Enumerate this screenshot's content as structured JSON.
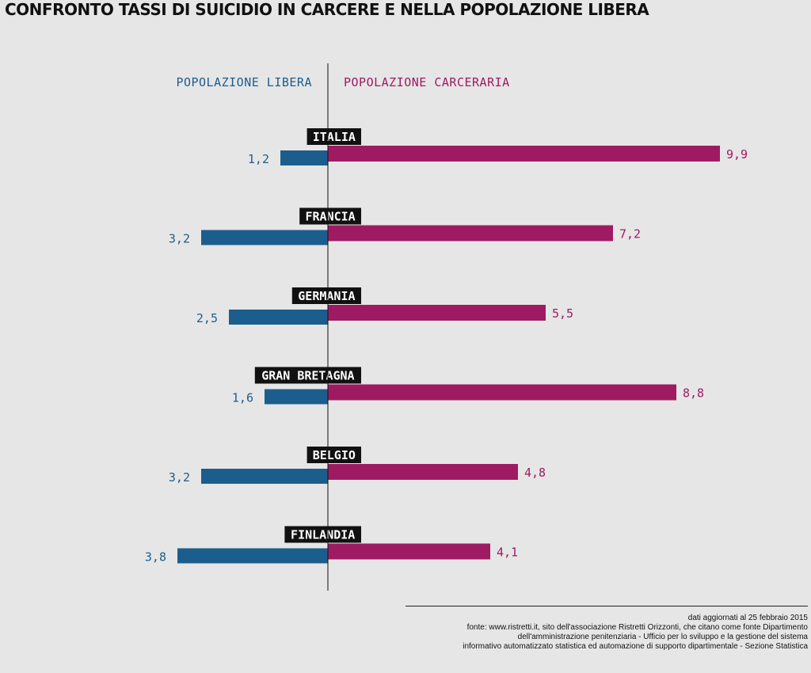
{
  "title": "CONFRONTO TASSI DI SUICIDIO IN CARCERE E NELLA POPOLAZIONE LIBERA",
  "legend": {
    "left": "POPOLAZIONE LIBERA",
    "right": "POPOLAZIONE CARCERARIA"
  },
  "colors": {
    "libera": "#1b5e8e",
    "carceraria": "#9e1b62",
    "label_bg": "#111111",
    "background": "#e6e6e6"
  },
  "chart_data": {
    "type": "bar",
    "categories": [
      "ITALIA",
      "FRANCIA",
      "GERMANIA",
      "GRAN BRETAGNA",
      "BELGIO",
      "FINLANDIA"
    ],
    "series": [
      {
        "name": "POPOLAZIONE LIBERA",
        "values": [
          1.2,
          3.2,
          2.5,
          1.6,
          3.2,
          3.8
        ],
        "labels": [
          "1,2",
          "3,2",
          "2,5",
          "1,6",
          "3,2",
          "3,8"
        ]
      },
      {
        "name": "POPOLAZIONE CARCERARIA",
        "values": [
          9.9,
          7.2,
          5.5,
          8.8,
          4.8,
          4.1
        ],
        "labels": [
          "9,9",
          "7,2",
          "5,5",
          "8,8",
          "4,8",
          "4,1"
        ]
      }
    ]
  },
  "footer": {
    "lines": [
      "dati aggiornati al 25 febbraio 2015",
      "fonte: www.ristretti.it, sito dell'associazione Ristretti Orizzonti, che citano come fonte Dipartimento",
      "dell'amministrazione penitenziaria - Ufficio per lo sviluppo e la gestione del sistema",
      "informativo automatizzato statistica ed automazione di supporto dipartimentale - Sezione Statistica"
    ]
  }
}
